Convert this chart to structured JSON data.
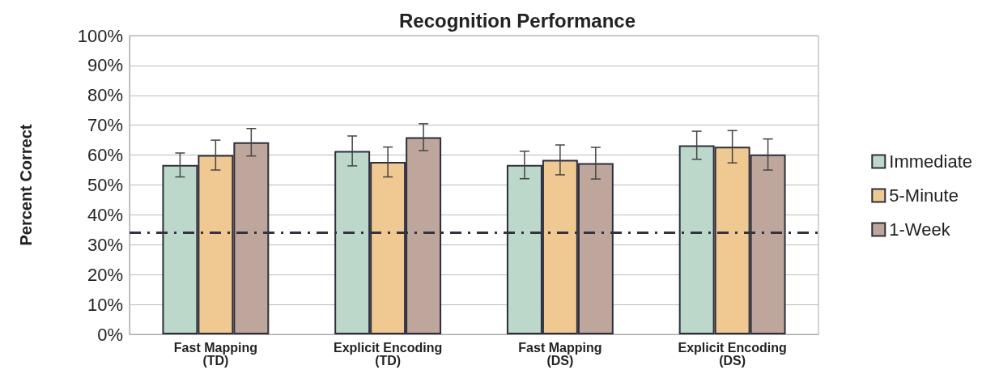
{
  "chart_data": {
    "type": "bar",
    "title": "Recognition Performance",
    "ylabel": "Percent Correct",
    "categories": [
      "Fast Mapping\n(TD)",
      "Explicit Encoding\n(TD)",
      "Fast Mapping\n(DS)",
      "Explicit Encoding\n(DS)"
    ],
    "series": [
      {
        "name": "Immediate",
        "color": "#bcd8cb",
        "values": [
          56.7,
          61.4,
          56.7,
          63.3
        ],
        "errors": [
          4,
          5,
          4.6,
          4.7
        ]
      },
      {
        "name": "5-Minute",
        "color": "#f0c892",
        "values": [
          60,
          57.7,
          58.4,
          62.8
        ],
        "errors": [
          5,
          5,
          5,
          5.4
        ]
      },
      {
        "name": "1-Week",
        "color": "#bea69c",
        "values": [
          64.3,
          66,
          57.3,
          60.2
        ],
        "errors": [
          4.6,
          4.5,
          5.3,
          5.2
        ]
      }
    ],
    "ylim": [
      0,
      100
    ],
    "yticks": [
      {
        "value": 0,
        "label": "0%"
      },
      {
        "value": 10,
        "label": "10%"
      },
      {
        "value": 20,
        "label": "20%"
      },
      {
        "value": 30,
        "label": "30%"
      },
      {
        "value": 40,
        "label": "40%"
      },
      {
        "value": 50,
        "label": "50%"
      },
      {
        "value": 60,
        "label": "60%"
      },
      {
        "value": 70,
        "label": "70%"
      },
      {
        "value": 80,
        "label": "80%"
      },
      {
        "value": 90,
        "label": "90%"
      },
      {
        "value": 100,
        "label": "100%"
      }
    ],
    "grid": "y",
    "legend": "right",
    "ref_lines": [
      {
        "axis": "y",
        "value": 34,
        "color": "#333340",
        "line_style": "dashdot"
      }
    ]
  }
}
